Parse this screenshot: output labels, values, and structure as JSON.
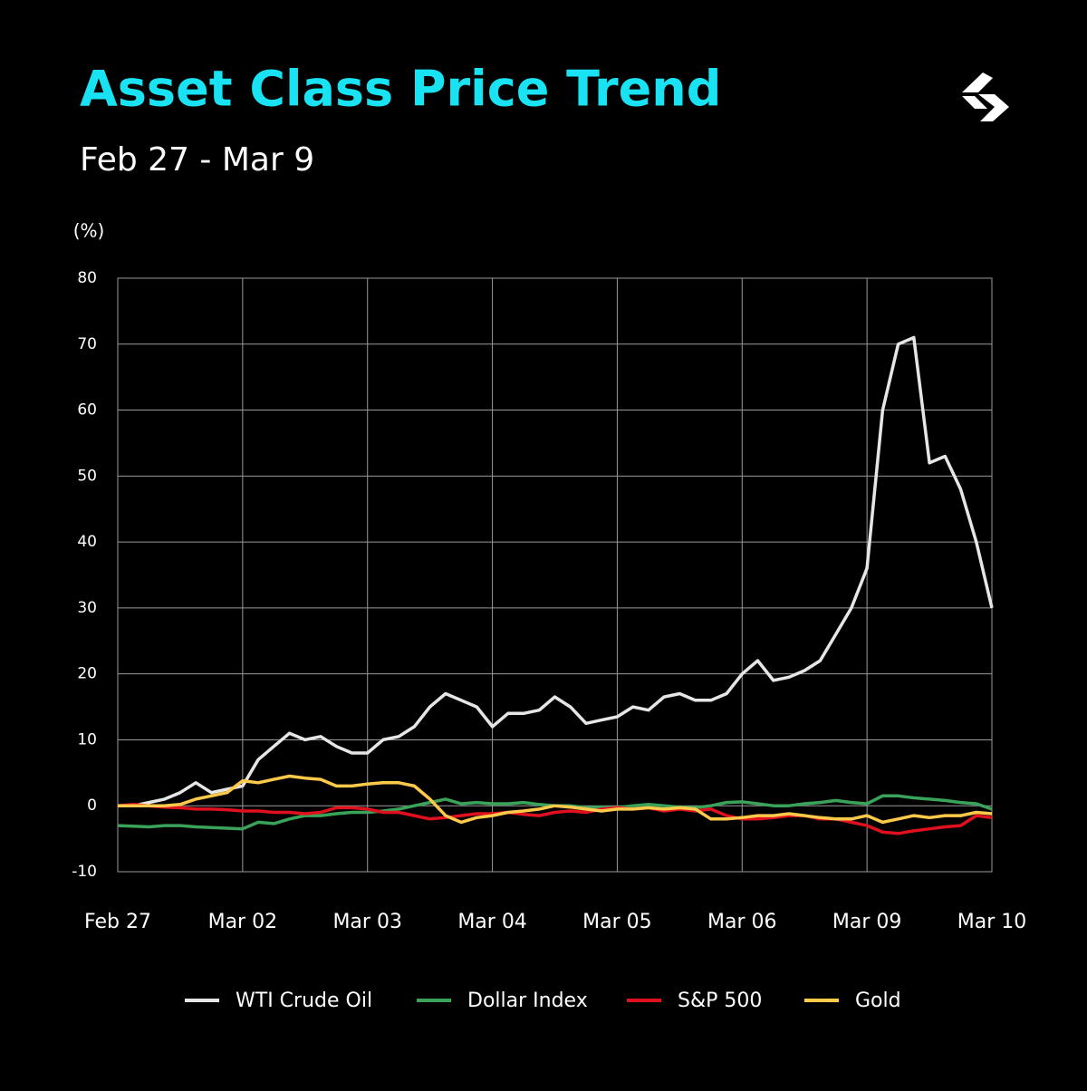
{
  "chart_data": {
    "type": "line",
    "title": "Asset Class Price Trend",
    "subtitle": "Feb 27 - Mar 9",
    "y_label": "(%)",
    "categories": [
      "Feb 27",
      null,
      null,
      null,
      null,
      null,
      null,
      null,
      "Mar 02",
      null,
      null,
      null,
      null,
      null,
      null,
      null,
      "Mar 03",
      null,
      null,
      null,
      null,
      null,
      null,
      null,
      "Mar 04",
      null,
      null,
      null,
      null,
      null,
      null,
      null,
      "Mar 05",
      null,
      null,
      null,
      null,
      null,
      null,
      null,
      "Mar 06",
      null,
      null,
      null,
      null,
      null,
      null,
      null,
      "Mar 09",
      null,
      null,
      null,
      null,
      null,
      null,
      null,
      "Mar 10"
    ],
    "series": [
      {
        "name": "WTI Crude Oil",
        "color": "#e6e6e6",
        "values": [
          0,
          0,
          0.5,
          1,
          2,
          3.5,
          2,
          2.5,
          3,
          7,
          9,
          11,
          10,
          10.5,
          9,
          8,
          8,
          10,
          10.5,
          12,
          15,
          17,
          16,
          15,
          12,
          14,
          14,
          14.5,
          16.5,
          15,
          12.5,
          13,
          13.5,
          15,
          14.5,
          16.5,
          17,
          16,
          16,
          17,
          20,
          22,
          19,
          19.5,
          20.5,
          22,
          26,
          30,
          36,
          60,
          70,
          71,
          52,
          53,
          48,
          40,
          30
        ]
      },
      {
        "name": "Dollar Index",
        "color": "#3aa35a",
        "values": [
          -3,
          -3.1,
          -3.2,
          -3,
          -3,
          -3.2,
          -3.3,
          -3.4,
          -3.5,
          -2.5,
          -2.7,
          -2,
          -1.5,
          -1.5,
          -1.2,
          -1,
          -1,
          -0.8,
          -0.5,
          0,
          0.5,
          1,
          0.3,
          0.5,
          0.3,
          0.3,
          0.5,
          0.2,
          0,
          0,
          -0.3,
          -0.2,
          -0.3,
          0,
          0.2,
          0,
          -0.2,
          -0.3,
          0,
          0.5,
          0.6,
          0.3,
          0,
          0,
          0.3,
          0.5,
          0.8,
          0.5,
          0.3,
          1.5,
          1.5,
          1.2,
          1,
          0.8,
          0.5,
          0.3,
          -0.5
        ]
      },
      {
        "name": "S&P 500",
        "color": "#e0101e",
        "values": [
          0,
          0.2,
          0,
          -0.2,
          -0.3,
          -0.5,
          -0.5,
          -0.6,
          -0.8,
          -0.8,
          -1,
          -1,
          -1.2,
          -1,
          -0.3,
          -0.3,
          -0.5,
          -1,
          -1,
          -1.5,
          -2,
          -1.8,
          -1.5,
          -1.2,
          -1.2,
          -1,
          -1.3,
          -1.5,
          -1,
          -0.8,
          -1,
          -0.5,
          -0.3,
          -0.5,
          -0.3,
          -0.8,
          -0.5,
          -0.8,
          -0.5,
          -1.5,
          -2,
          -2,
          -1.8,
          -1.5,
          -1.5,
          -2,
          -2,
          -2.5,
          -3,
          -4,
          -4.2,
          -3.8,
          -3.5,
          -3.2,
          -3,
          -1.5,
          -1.8
        ]
      },
      {
        "name": "Gold",
        "color": "#ffc94a",
        "values": [
          0,
          0,
          0,
          0,
          0.2,
          1,
          1.5,
          2,
          3.8,
          3.5,
          4,
          4.5,
          4.2,
          4,
          3,
          3,
          3.3,
          3.5,
          3.5,
          3,
          1,
          -1.5,
          -2.5,
          -1.8,
          -1.5,
          -1,
          -0.8,
          -0.5,
          0,
          -0.2,
          -0.5,
          -0.8,
          -0.5,
          -0.5,
          -0.3,
          -0.5,
          -0.3,
          -0.5,
          -2,
          -2,
          -1.8,
          -1.5,
          -1.5,
          -1.2,
          -1.5,
          -1.8,
          -2,
          -2,
          -1.5,
          -2.5,
          -2,
          -1.5,
          -1.8,
          -1.5,
          -1.5,
          -1,
          -1.2
        ]
      }
    ],
    "ylim": [
      -10,
      80
    ],
    "yticks": [
      -10,
      0,
      10,
      20,
      30,
      40,
      50,
      60,
      70,
      80
    ],
    "grid": true
  }
}
